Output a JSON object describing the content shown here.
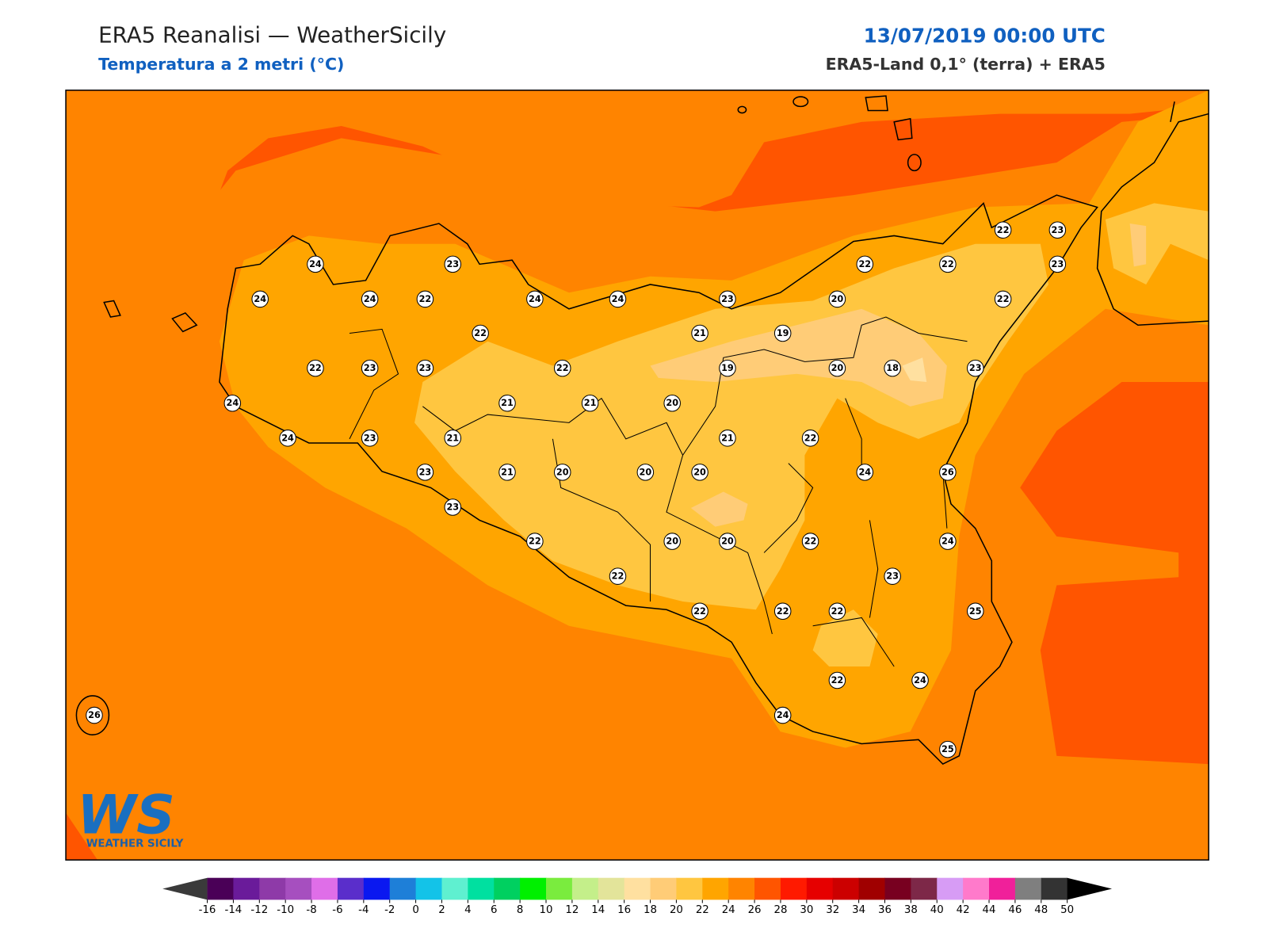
{
  "header": {
    "title": "ERA5 Reanalisi — WeatherSicily",
    "subtitle": "Temperatura a 2 metri (°C)",
    "date": "13/07/2019 00:00 UTC",
    "source": "ERA5-Land 0,1° (terra) + ERA5"
  },
  "stations": [
    24,
    23,
    22,
    22,
    23,
    22,
    23,
    24,
    24,
    22,
    24,
    24,
    23,
    20,
    22,
    22,
    21,
    19,
    22,
    23,
    23,
    22,
    19,
    20,
    18,
    23,
    24,
    21,
    21,
    20,
    24,
    23,
    21,
    21,
    22,
    23,
    21,
    20,
    20,
    20,
    24,
    26,
    23,
    22,
    20,
    20,
    22,
    24,
    22,
    23,
    22,
    22,
    22,
    25,
    22,
    24,
    26,
    24,
    25
  ],
  "colorbar": {
    "ticks": [
      -16,
      -14,
      -12,
      -10,
      -8,
      -6,
      -4,
      -2,
      0,
      2,
      4,
      6,
      8,
      10,
      12,
      14,
      16,
      18,
      20,
      22,
      24,
      26,
      28,
      30,
      32,
      34,
      36,
      38,
      40,
      42,
      44,
      46,
      48,
      50
    ],
    "colors": [
      "#4a0057",
      "#6a1b9a",
      "#8e3aa8",
      "#a64fbf",
      "#df6ee8",
      "#5a2ecb",
      "#0a18f0",
      "#1e7fd8",
      "#13c3e8",
      "#5ff0d0",
      "#00e0a0",
      "#00d060",
      "#00f000",
      "#7aec3e",
      "#c4ef8a",
      "#e3e49a",
      "#ffe0a0",
      "#ffcc77",
      "#ffc640",
      "#ffa500",
      "#ff8400",
      "#ff5500",
      "#ff1a00",
      "#e60000",
      "#cc0000",
      "#a00000",
      "#780020",
      "#7d2848",
      "#d79cf5",
      "#ff7acb",
      "#f0209a",
      "#7f7f7f",
      "#333333"
    ],
    "under_color": "#3a3a3a",
    "over_color": "#000000"
  },
  "logo": {
    "mark": "WS",
    "name": "WEATHER SICILY"
  }
}
